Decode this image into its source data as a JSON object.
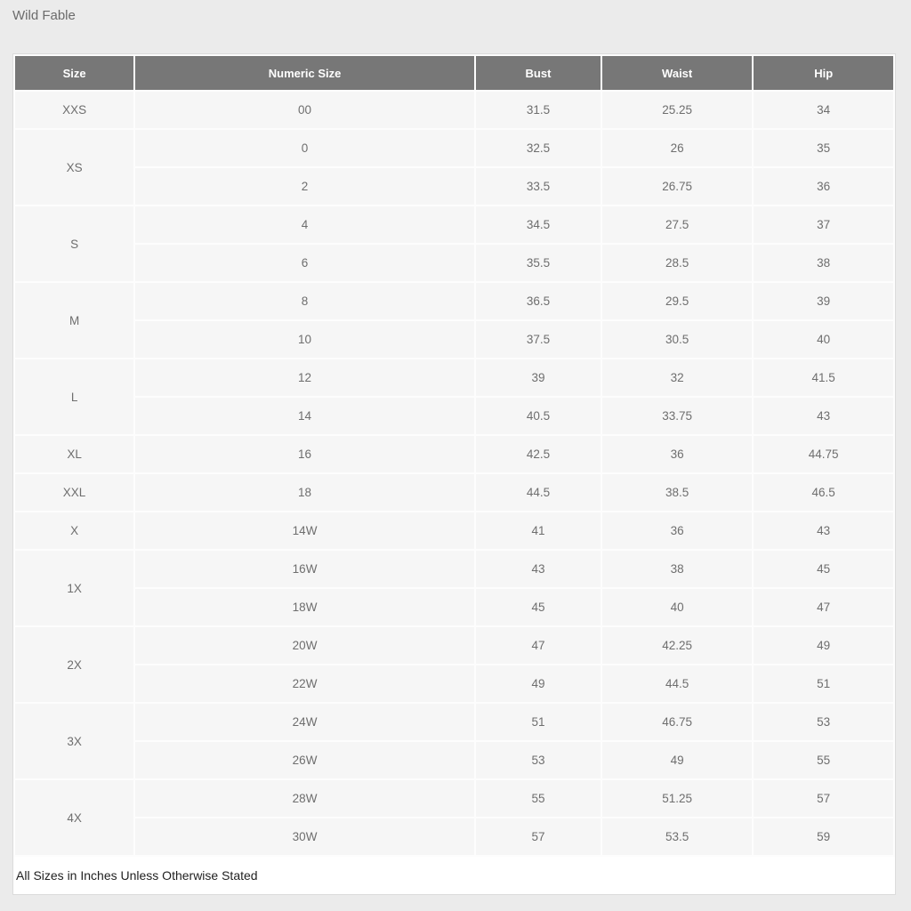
{
  "title": "Wild Fable",
  "table": {
    "headers": [
      "Size",
      "Numeric Size",
      "Bust",
      "Waist",
      "Hip"
    ],
    "groups": [
      {
        "size": "XXS",
        "rows": [
          [
            "00",
            "31.5",
            "25.25",
            "34"
          ]
        ]
      },
      {
        "size": "XS",
        "rows": [
          [
            "0",
            "32.5",
            "26",
            "35"
          ],
          [
            "2",
            "33.5",
            "26.75",
            "36"
          ]
        ]
      },
      {
        "size": "S",
        "rows": [
          [
            "4",
            "34.5",
            "27.5",
            "37"
          ],
          [
            "6",
            "35.5",
            "28.5",
            "38"
          ]
        ]
      },
      {
        "size": "M",
        "rows": [
          [
            "8",
            "36.5",
            "29.5",
            "39"
          ],
          [
            "10",
            "37.5",
            "30.5",
            "40"
          ]
        ]
      },
      {
        "size": "L",
        "rows": [
          [
            "12",
            "39",
            "32",
            "41.5"
          ],
          [
            "14",
            "40.5",
            "33.75",
            "43"
          ]
        ]
      },
      {
        "size": "XL",
        "rows": [
          [
            "16",
            "42.5",
            "36",
            "44.75"
          ]
        ]
      },
      {
        "size": "XXL",
        "rows": [
          [
            "18",
            "44.5",
            "38.5",
            "46.5"
          ]
        ]
      },
      {
        "size": "X",
        "rows": [
          [
            "14W",
            "41",
            "36",
            "43"
          ]
        ]
      },
      {
        "size": "1X",
        "rows": [
          [
            "16W",
            "43",
            "38",
            "45"
          ],
          [
            "18W",
            "45",
            "40",
            "47"
          ]
        ]
      },
      {
        "size": "2X",
        "rows": [
          [
            "20W",
            "47",
            "42.25",
            "49"
          ],
          [
            "22W",
            "49",
            "44.5",
            "51"
          ]
        ]
      },
      {
        "size": "3X",
        "rows": [
          [
            "24W",
            "51",
            "46.75",
            "53"
          ],
          [
            "26W",
            "53",
            "49",
            "55"
          ]
        ]
      },
      {
        "size": "4X",
        "rows": [
          [
            "28W",
            "55",
            "51.25",
            "57"
          ],
          [
            "30W",
            "57",
            "53.5",
            "59"
          ]
        ]
      }
    ],
    "footnote": "All Sizes in Inches Unless Otherwise Stated"
  },
  "colors": {
    "page_bg": "#ebebeb",
    "card_bg": "#fdfdfd",
    "card_border": "#dcdcdc",
    "header_bg": "#777777",
    "header_text": "#ffffff",
    "row_bg": "#f6f6f6",
    "cell_text": "#6e6e6e",
    "title_text": "#6b6b6b",
    "footnote_text": "#1f1f1f",
    "footer_bg": "#ffffff"
  }
}
